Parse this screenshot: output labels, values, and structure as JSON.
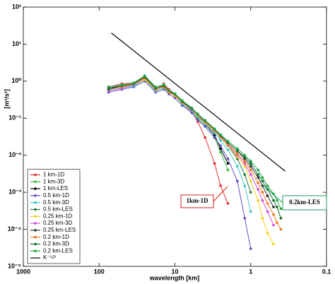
{
  "chart_data": {
    "type": "line",
    "xlabel": "wavelength [km]",
    "ylabel": "[m²/s²]",
    "xscale": "log",
    "yscale": "log",
    "xlim": [
      1000,
      0.1
    ],
    "ylim": [
      1e-05,
      100
    ],
    "xticks": [
      1000,
      100,
      10,
      1,
      0.1
    ],
    "yticks": [
      {
        "value": 100,
        "label": "10²"
      },
      {
        "value": 10,
        "label": "10¹"
      },
      {
        "value": 1,
        "label": "10⁰"
      },
      {
        "value": 0.1,
        "label": "10⁻¹"
      },
      {
        "value": 0.01,
        "label": "10⁻²"
      },
      {
        "value": 0.001,
        "label": "10⁻³"
      },
      {
        "value": 0.0001,
        "label": "10⁻⁴"
      },
      {
        "value": 1e-05,
        "label": "10⁻⁵"
      }
    ],
    "legend": "lower left",
    "series": [
      {
        "name": "1 km-1D",
        "color": "#e8302c",
        "x": [
          75,
          50,
          35,
          25,
          18,
          14,
          12,
          10,
          8,
          6,
          5,
          4,
          3,
          2.5,
          2
        ],
        "values": [
          0.7,
          0.85,
          0.9,
          1.4,
          0.55,
          0.85,
          0.6,
          0.45,
          0.25,
          0.15,
          0.08,
          0.03,
          0.006,
          0.0015,
          0.0005
        ]
      },
      {
        "name": "1 km-3D",
        "color": "#3bbf3b",
        "x": [
          75,
          50,
          35,
          25,
          18,
          14,
          12,
          10,
          8,
          6,
          5,
          4,
          3,
          2.5,
          2
        ],
        "values": [
          0.6,
          0.7,
          0.8,
          1.1,
          0.6,
          0.7,
          0.5,
          0.4,
          0.25,
          0.16,
          0.1,
          0.06,
          0.03,
          0.012,
          0.004
        ]
      },
      {
        "name": "1 km-LES",
        "color": "#000000",
        "x": [
          75,
          50,
          35,
          25,
          18,
          14,
          12,
          10,
          8,
          6,
          5,
          4,
          3,
          2.5,
          2
        ],
        "values": [
          0.65,
          0.75,
          0.85,
          1.2,
          0.65,
          0.75,
          0.5,
          0.45,
          0.28,
          0.18,
          0.12,
          0.07,
          0.035,
          0.015,
          0.006
        ]
      },
      {
        "name": "0.5 km-1D",
        "color": "#5a4fc8",
        "x": [
          75,
          50,
          35,
          25,
          18,
          14,
          12,
          10,
          8,
          6,
          5,
          4,
          3,
          2.5,
          2,
          1.5,
          1.2,
          1
        ],
        "values": [
          0.5,
          0.6,
          0.7,
          1.0,
          0.5,
          0.6,
          0.45,
          0.35,
          0.22,
          0.14,
          0.09,
          0.06,
          0.03,
          0.018,
          0.008,
          0.002,
          0.0002,
          3e-05
        ]
      },
      {
        "name": "0.5 km-3D",
        "color": "#3cc8c8",
        "x": [
          75,
          50,
          35,
          25,
          18,
          14,
          12,
          10,
          8,
          6,
          5,
          4,
          3,
          2.5,
          2,
          1.5,
          1.2,
          1
        ],
        "values": [
          0.55,
          0.65,
          0.75,
          1.1,
          0.55,
          0.65,
          0.5,
          0.4,
          0.25,
          0.16,
          0.11,
          0.07,
          0.04,
          0.025,
          0.014,
          0.005,
          0.0015,
          0.0003
        ]
      },
      {
        "name": "0.5 km-LES",
        "color": "#1e7a3a",
        "x": [
          75,
          50,
          35,
          25,
          18,
          14,
          12,
          10,
          8,
          6,
          5,
          4,
          3,
          2.5,
          2,
          1.5,
          1.2,
          1
        ],
        "values": [
          0.6,
          0.7,
          0.8,
          1.2,
          0.6,
          0.7,
          0.5,
          0.42,
          0.27,
          0.17,
          0.12,
          0.075,
          0.045,
          0.03,
          0.018,
          0.008,
          0.003,
          0.001
        ]
      },
      {
        "name": "0.25 km-1D",
        "color": "#f2d21e",
        "x": [
          75,
          50,
          35,
          25,
          18,
          14,
          12,
          10,
          8,
          6,
          5,
          4,
          3,
          2.5,
          2,
          1.5,
          1.2,
          1,
          0.8,
          0.7,
          0.6,
          0.5
        ],
        "values": [
          0.6,
          0.7,
          0.8,
          1.1,
          0.6,
          0.7,
          0.5,
          0.4,
          0.26,
          0.17,
          0.12,
          0.075,
          0.045,
          0.03,
          0.018,
          0.009,
          0.005,
          0.002,
          0.0006,
          0.0002,
          8e-05,
          4e-05
        ]
      },
      {
        "name": "0.25 km-3D",
        "color": "#d64fd6",
        "x": [
          75,
          50,
          35,
          25,
          18,
          14,
          12,
          10,
          8,
          6,
          5,
          4,
          3,
          2.5,
          2,
          1.5,
          1.2,
          1,
          0.8,
          0.7,
          0.6,
          0.5
        ],
        "values": [
          0.55,
          0.65,
          0.8,
          1.2,
          0.6,
          0.7,
          0.5,
          0.42,
          0.27,
          0.17,
          0.12,
          0.078,
          0.046,
          0.031,
          0.019,
          0.01,
          0.006,
          0.003,
          0.0012,
          0.0006,
          0.0003,
          0.00013
        ]
      },
      {
        "name": "0.25 km-LES",
        "color": "#333333",
        "x": [
          75,
          50,
          35,
          25,
          18,
          14,
          12,
          10,
          8,
          6,
          5,
          4,
          3,
          2.5,
          2,
          1.5,
          1.2,
          1,
          0.8,
          0.7,
          0.6,
          0.5
        ],
        "values": [
          0.65,
          0.75,
          0.85,
          1.3,
          0.65,
          0.75,
          0.55,
          0.45,
          0.28,
          0.18,
          0.13,
          0.08,
          0.05,
          0.034,
          0.022,
          0.013,
          0.008,
          0.005,
          0.0025,
          0.0015,
          0.0008,
          0.0004
        ]
      },
      {
        "name": "0.2 km-1D",
        "color": "#f07a1e",
        "x": [
          75,
          50,
          35,
          25,
          18,
          14,
          12,
          10,
          8,
          6,
          5,
          4,
          3,
          2.5,
          2,
          1.5,
          1.2,
          1,
          0.8,
          0.7,
          0.6,
          0.5,
          0.45,
          0.4
        ],
        "values": [
          0.6,
          0.7,
          0.85,
          1.2,
          0.6,
          0.7,
          0.5,
          0.42,
          0.27,
          0.18,
          0.12,
          0.08,
          0.047,
          0.032,
          0.02,
          0.011,
          0.007,
          0.004,
          0.0018,
          0.001,
          0.0005,
          0.00025,
          0.00015,
          0.0001
        ]
      },
      {
        "name": "0.2 km-3D",
        "color": "#0f6e2a",
        "x": [
          75,
          50,
          35,
          25,
          18,
          14,
          12,
          10,
          8,
          6,
          5,
          4,
          3,
          2.5,
          2,
          1.5,
          1.2,
          1,
          0.8,
          0.7,
          0.6,
          0.5,
          0.45,
          0.4
        ],
        "values": [
          0.6,
          0.75,
          0.85,
          1.3,
          0.65,
          0.75,
          0.55,
          0.45,
          0.28,
          0.18,
          0.13,
          0.085,
          0.05,
          0.034,
          0.022,
          0.013,
          0.009,
          0.006,
          0.003,
          0.002,
          0.0012,
          0.0006,
          0.0004,
          0.0002
        ]
      },
      {
        "name": "0.2 km-LES",
        "color": "#22a84a",
        "x": [
          75,
          50,
          35,
          25,
          18,
          14,
          12,
          10,
          8,
          6,
          5,
          4,
          3,
          2.5,
          2,
          1.5,
          1.2,
          1,
          0.8,
          0.7,
          0.6,
          0.5,
          0.45,
          0.4
        ],
        "values": [
          0.7,
          0.8,
          0.9,
          1.4,
          0.7,
          0.8,
          0.55,
          0.46,
          0.3,
          0.19,
          0.13,
          0.088,
          0.052,
          0.036,
          0.024,
          0.015,
          0.01,
          0.007,
          0.004,
          0.0025,
          0.0015,
          0.0009,
          0.0006,
          0.00036
        ]
      },
      {
        "name": "K⁻⁵/³",
        "color": "#000000",
        "markers": false,
        "x": [
          69,
          0.35
        ],
        "values": [
          20,
          0.0037
        ]
      }
    ],
    "annotations": [
      {
        "text": "1km-1D",
        "color": "#d42020"
      },
      {
        "text": "0.2km-LES",
        "color": "#1f9a5a"
      }
    ]
  }
}
